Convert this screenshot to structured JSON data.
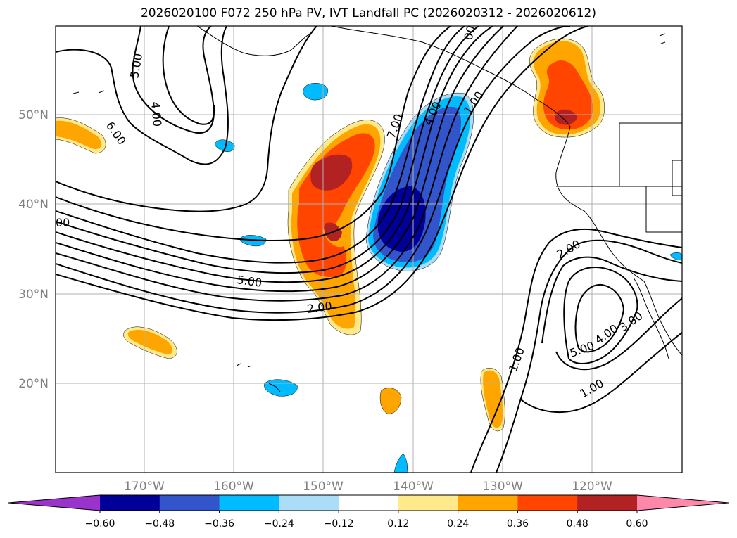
{
  "title": "2026020100 F072 250 hPa PV, IVT Landfall PC (2026020312 - 2026020612)",
  "lat_labels": [
    "50°N",
    "40°N",
    "30°N",
    "20°N"
  ],
  "lon_labels": [
    "170°W",
    "160°W",
    "150°W",
    "140°W",
    "130°W",
    "120°W"
  ],
  "contour_labels": [
    "5.00",
    "4.00",
    "6.00",
    "7.00",
    "4.00",
    "1.00",
    "5.00",
    "2.00",
    "2.00",
    "1.00",
    "1.00",
    "5.00",
    "4.00",
    "3.00",
    "00",
    "00"
  ],
  "colorbar": {
    "colors": [
      "#9933cc",
      "#000099",
      "#3355cc",
      "#00bbff",
      "#aaddf8",
      "#ffffff",
      "#ffe98a",
      "#ffa500",
      "#ff4500",
      "#b22222",
      "#ff88aa"
    ],
    "tick_labels": [
      "−0.60",
      "−0.48",
      "−0.36",
      "−0.24",
      "−0.12",
      "0.12",
      "0.24",
      "0.36",
      "0.48",
      "0.60"
    ]
  },
  "colors": {
    "grid": "#b0b0b0",
    "axis_label": "#808080",
    "contour": "#000000"
  }
}
